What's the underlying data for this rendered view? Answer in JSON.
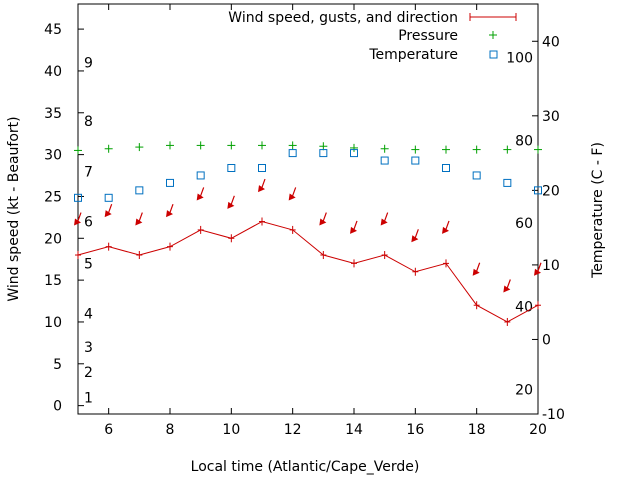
{
  "chart_data": {
    "type": "line",
    "xlabel": "Local time (Atlantic/Cape_Verde)",
    "ylabel_left": "Wind speed (kt - Beaufort)",
    "ylabel_right": "Temperature (C - F)",
    "xlim": [
      5,
      20
    ],
    "ylim_left": [
      -1,
      48
    ],
    "ylim_right": [
      -10,
      45
    ],
    "x_ticks": [
      6,
      8,
      10,
      12,
      14,
      16,
      18,
      20
    ],
    "y_left_ticks": [
      0,
      5,
      10,
      15,
      20,
      25,
      30,
      35,
      40,
      45
    ],
    "y_right_ticks": [
      -10,
      0,
      10,
      20,
      30,
      40
    ],
    "beaufort_labels": [
      {
        "label": "1",
        "kt": 1
      },
      {
        "label": "2",
        "kt": 4
      },
      {
        "label": "3",
        "kt": 7
      },
      {
        "label": "4",
        "kt": 11
      },
      {
        "label": "5",
        "kt": 17
      },
      {
        "label": "6",
        "kt": 22
      },
      {
        "label": "7",
        "kt": 28
      },
      {
        "label": "8",
        "kt": 34
      },
      {
        "label": "9",
        "kt": 41
      }
    ],
    "fahrenheit_labels": [
      {
        "label": "20",
        "c": -6.7
      },
      {
        "label": "40",
        "c": 4.4
      },
      {
        "label": "60",
        "c": 15.6
      },
      {
        "label": "80",
        "c": 26.7
      },
      {
        "label": "100",
        "c": 37.8
      }
    ],
    "legend": [
      "Wind speed, gusts, and direction",
      "Pressure",
      "Temperature"
    ],
    "legend_position": "top-right",
    "series": [
      {
        "name": "Wind speed, gusts, and direction",
        "color": "#cc0000",
        "x": [
          5,
          6,
          7,
          8,
          9,
          10,
          11,
          12,
          13,
          14,
          15,
          16,
          17,
          18,
          19,
          20
        ],
        "values": [
          18,
          19,
          18,
          19,
          21,
          20,
          22,
          21,
          18,
          17,
          18,
          16,
          17,
          12,
          10,
          12
        ],
        "gusts": [
          22,
          23,
          22,
          23,
          25,
          24,
          26,
          25,
          22,
          21,
          22,
          20,
          21,
          16,
          14,
          16
        ]
      },
      {
        "name": "Pressure",
        "color": "#00a000",
        "x": [
          5,
          6,
          7,
          8,
          9,
          10,
          11,
          12,
          13,
          14,
          15,
          16,
          17,
          18,
          19,
          20
        ],
        "values": [
          30.5,
          30.7,
          30.9,
          31.1,
          31.1,
          31.1,
          31.1,
          31.1,
          31.0,
          30.8,
          30.7,
          30.6,
          30.6,
          30.6,
          30.6,
          30.6
        ]
      },
      {
        "name": "Temperature",
        "color": "#0070c0",
        "x": [
          5,
          6,
          7,
          8,
          9,
          10,
          11,
          12,
          13,
          14,
          15,
          16,
          17,
          18,
          19,
          20
        ],
        "values": [
          19,
          19,
          20,
          21,
          22,
          23,
          23,
          25,
          25,
          25,
          24,
          24,
          23,
          22,
          21,
          20
        ]
      }
    ]
  }
}
